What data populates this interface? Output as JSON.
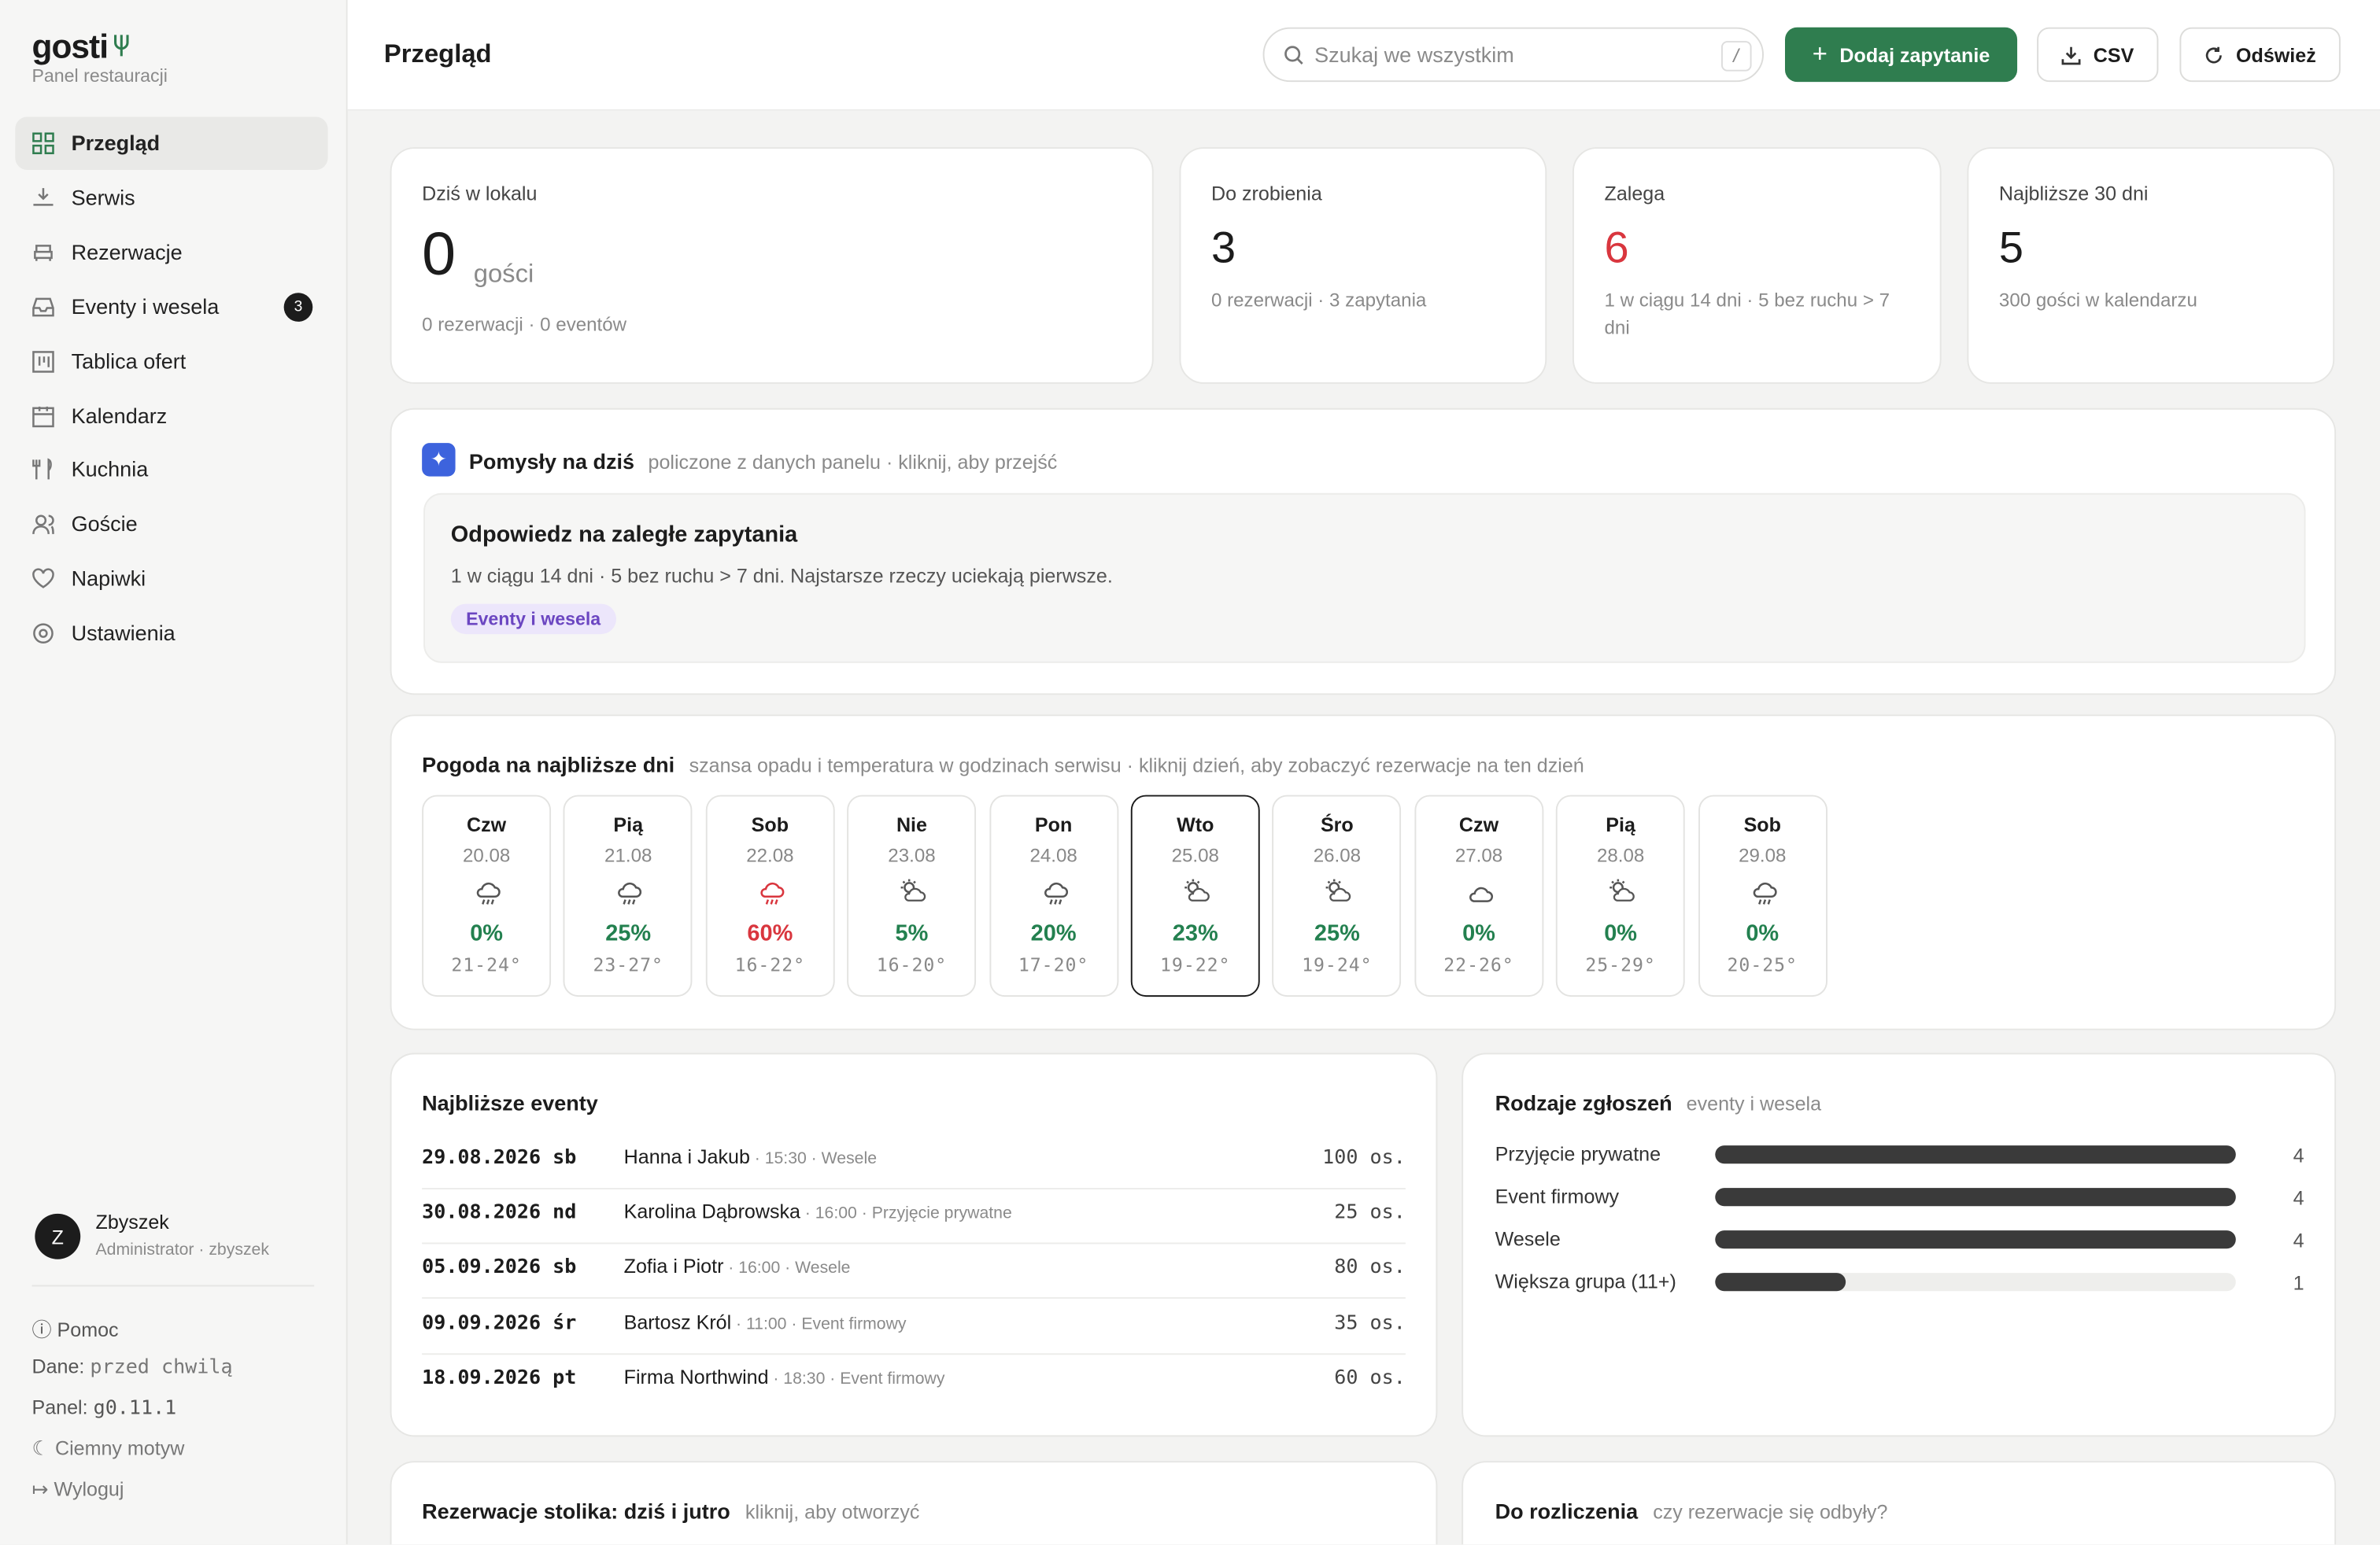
{
  "sidebar": {
    "brand": "gosti",
    "subtitle": "Panel restauracji",
    "nav": [
      {
        "label": "Przegląd",
        "active": true
      },
      {
        "label": "Serwis"
      },
      {
        "label": "Rezerwacje"
      },
      {
        "label": "Eventy i wesela",
        "badge": 3
      },
      {
        "label": "Tablica ofert"
      },
      {
        "label": "Kalendarz"
      },
      {
        "label": "Kuchnia"
      },
      {
        "label": "Goście"
      },
      {
        "label": "Napiwki"
      },
      {
        "label": "Ustawienia"
      }
    ],
    "user": {
      "initial": "Z",
      "name": "Zbyszek",
      "role": "Administrator · zbyszek"
    },
    "footer": {
      "help": "Pomoc",
      "data_label": "Dane:",
      "data_value": "przed chwilą",
      "panel_label": "Panel:",
      "panel_value": "g0.11.1",
      "theme": "Ciemny motyw",
      "logout": "Wyloguj"
    }
  },
  "header": {
    "title": "Przegląd",
    "search_placeholder": "Szukaj we wszystkim",
    "search_key": "/",
    "add_button": "Dodaj zapytanie",
    "csv_button": "CSV",
    "refresh_button": "Odśwież"
  },
  "stats": [
    {
      "label": "Dziś w lokalu",
      "value": 0,
      "unit": "gości",
      "detail": "0 rezerwacji · 0 eventów"
    },
    {
      "label": "Do zrobienia",
      "value": 3,
      "detail": "0 rezerwacji · 3 zapytania"
    },
    {
      "label": "Zalega",
      "value": 6,
      "color": "#d9363e",
      "detail": "1 w ciągu 14 dni · 5 bez ruchu > 7 dni"
    },
    {
      "label": "Najbliższe 30 dni",
      "value": 5,
      "detail": "300 gości w kalendarzu"
    }
  ],
  "ideas": {
    "title": "Pomysły na dziś",
    "subtitle": "policzone z danych panelu · kliknij, aby przejść",
    "card": {
      "title": "Odpowiedz na zaległe zapytania",
      "text": "1 w ciągu 14 dni · 5 bez ruchu > 7 dni. Najstarsze rzeczy uciekają pierwsze.",
      "tag": "Eventy i wesela"
    }
  },
  "weather": {
    "title": "Pogoda na najbliższe dni",
    "subtitle": "szansa opadu i temperatura w godzinach serwisu · kliknij dzień, aby zobaczyć rezerwacje na ten dzień",
    "days": [
      {
        "day": "Czw",
        "date": "20.08",
        "icon": "rain",
        "rain": "0%",
        "temp": "21-24°",
        "color": "#23804f"
      },
      {
        "day": "Pią",
        "date": "21.08",
        "icon": "rain",
        "rain": "25%",
        "temp": "23-27°",
        "color": "#23804f"
      },
      {
        "day": "Sob",
        "date": "22.08",
        "icon": "rain",
        "rain": "60%",
        "temp": "16-22°",
        "color": "#d9363e"
      },
      {
        "day": "Nie",
        "date": "23.08",
        "icon": "partly",
        "rain": "5%",
        "temp": "16-20°",
        "color": "#23804f"
      },
      {
        "day": "Pon",
        "date": "24.08",
        "icon": "rain",
        "rain": "20%",
        "temp": "17-20°",
        "color": "#23804f"
      },
      {
        "day": "Wto",
        "date": "25.08",
        "icon": "partly",
        "rain": "23%",
        "temp": "19-22°",
        "color": "#23804f",
        "selected": true
      },
      {
        "day": "Śro",
        "date": "26.08",
        "icon": "partly",
        "rain": "25%",
        "temp": "19-24°",
        "color": "#23804f"
      },
      {
        "day": "Czw",
        "date": "27.08",
        "icon": "cloud",
        "rain": "0%",
        "temp": "22-26°",
        "color": "#23804f"
      },
      {
        "day": "Pią",
        "date": "28.08",
        "icon": "partly",
        "rain": "0%",
        "temp": "25-29°",
        "color": "#23804f"
      },
      {
        "day": "Sob",
        "date": "29.08",
        "icon": "rain",
        "rain": "0%",
        "temp": "20-25°",
        "color": "#23804f"
      }
    ]
  },
  "events": {
    "title": "Najbliższe eventy",
    "rows": [
      {
        "date": "29.08.2026 sb",
        "name": "Hanna i Jakub",
        "meta": "· 15:30 · Wesele",
        "guests": "100 os."
      },
      {
        "date": "30.08.2026 nd",
        "name": "Karolina Dąbrowska",
        "meta": "· 16:00 · Przyjęcie prywatne",
        "guests": "25 os."
      },
      {
        "date": "05.09.2026 sb",
        "name": "Zofia i Piotr",
        "meta": "· 16:00 · Wesele",
        "guests": "80 os."
      },
      {
        "date": "09.09.2026 śr",
        "name": "Bartosz Król",
        "meta": "· 11:00 · Event firmowy",
        "guests": "35 os."
      },
      {
        "date": "18.09.2026 pt",
        "name": "Firma Northwind",
        "meta": "· 18:30 · Event firmowy",
        "guests": "60 os."
      }
    ]
  },
  "request_types": {
    "type": "bar",
    "title": "Rodzaje zgłoszeń",
    "subtitle": "eventy i wesela",
    "categories": [
      "Przyjęcie prywatne",
      "Event firmowy",
      "Wesele",
      "Większa grupa (11+)"
    ],
    "values": [
      4,
      4,
      4,
      1
    ],
    "color": "#3a3a3a"
  },
  "reservations": {
    "title": "Rezerwacje stolika: dziś i jutro",
    "subtitle": "kliknij, aby otworzyć"
  },
  "settlement": {
    "title": "Do rozliczenia",
    "subtitle": "czy rezerwacje się odbyły?"
  }
}
